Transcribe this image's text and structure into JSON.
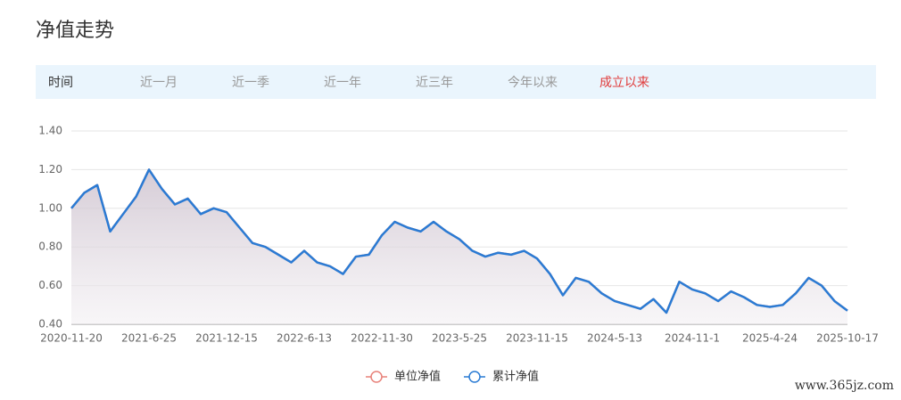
{
  "title": "净值走势",
  "tabs": [
    {
      "label": "时间",
      "color": "#333333"
    },
    {
      "label": "近一月",
      "color": "#999999"
    },
    {
      "label": "近一季",
      "color": "#999999"
    },
    {
      "label": "近一年",
      "color": "#999999"
    },
    {
      "label": "近三年",
      "color": "#999999"
    },
    {
      "label": "今年以来",
      "color": "#999999"
    },
    {
      "label": "成立以来",
      "color": "#e03c3c"
    }
  ],
  "watermark": "www.365jz.com",
  "chart_data": {
    "type": "line",
    "categories": [
      "2020-11-20",
      null,
      null,
      null,
      null,
      null,
      "2021-6-25",
      null,
      null,
      null,
      null,
      null,
      "2021-12-15",
      null,
      null,
      null,
      null,
      null,
      "2022-6-13",
      null,
      null,
      null,
      null,
      null,
      "2022-11-30",
      null,
      null,
      null,
      null,
      null,
      "2023-5-25",
      null,
      null,
      null,
      null,
      null,
      "2023-11-15",
      null,
      null,
      null,
      null,
      null,
      "2024-5-13",
      null,
      null,
      null,
      null,
      null,
      "2024-11-1",
      null,
      null,
      null,
      null,
      null,
      "2025-4-24",
      null,
      null,
      null,
      null,
      null,
      "2025-10-17"
    ],
    "series": [
      {
        "name": "单位净值",
        "color": "#e8827a",
        "values": [
          1.0,
          1.08,
          1.12,
          0.88,
          0.97,
          1.06,
          1.2,
          1.1,
          1.02,
          1.05,
          0.97,
          1.0,
          0.98,
          0.9,
          0.82,
          0.8,
          0.76,
          0.72,
          0.78,
          0.72,
          0.7,
          0.66,
          0.75,
          0.76,
          0.86,
          0.93,
          0.9,
          0.88,
          0.93,
          0.88,
          0.84,
          0.78,
          0.75,
          0.77,
          0.76,
          0.78,
          0.74,
          0.66,
          0.55,
          0.64,
          0.62,
          0.56,
          0.52,
          0.5,
          0.48,
          0.53,
          0.46,
          0.62,
          0.58,
          0.56,
          0.52,
          0.57,
          0.54,
          0.5,
          0.49,
          0.5,
          0.56,
          0.64,
          0.6,
          0.52,
          0.47
        ]
      },
      {
        "name": "累计净值",
        "color": "#2a7bd4",
        "values": [
          1.0,
          1.08,
          1.12,
          0.88,
          0.97,
          1.06,
          1.2,
          1.1,
          1.02,
          1.05,
          0.97,
          1.0,
          0.98,
          0.9,
          0.82,
          0.8,
          0.76,
          0.72,
          0.78,
          0.72,
          0.7,
          0.66,
          0.75,
          0.76,
          0.86,
          0.93,
          0.9,
          0.88,
          0.93,
          0.88,
          0.84,
          0.78,
          0.75,
          0.77,
          0.76,
          0.78,
          0.74,
          0.66,
          0.55,
          0.64,
          0.62,
          0.56,
          0.52,
          0.5,
          0.48,
          0.53,
          0.46,
          0.62,
          0.58,
          0.56,
          0.52,
          0.57,
          0.54,
          0.5,
          0.49,
          0.5,
          0.56,
          0.64,
          0.6,
          0.52,
          0.47
        ]
      }
    ],
    "ylim": [
      0.4,
      1.4
    ],
    "yticks": [
      {
        "value": 0.4,
        "label": "0.40"
      },
      {
        "value": 0.6,
        "label": "0.60"
      },
      {
        "value": 0.8,
        "label": "0.80"
      },
      {
        "value": 1.0,
        "label": "1.00"
      },
      {
        "value": 1.2,
        "label": "1.20"
      },
      {
        "value": 1.4,
        "label": "1.40"
      }
    ],
    "grid": true
  }
}
